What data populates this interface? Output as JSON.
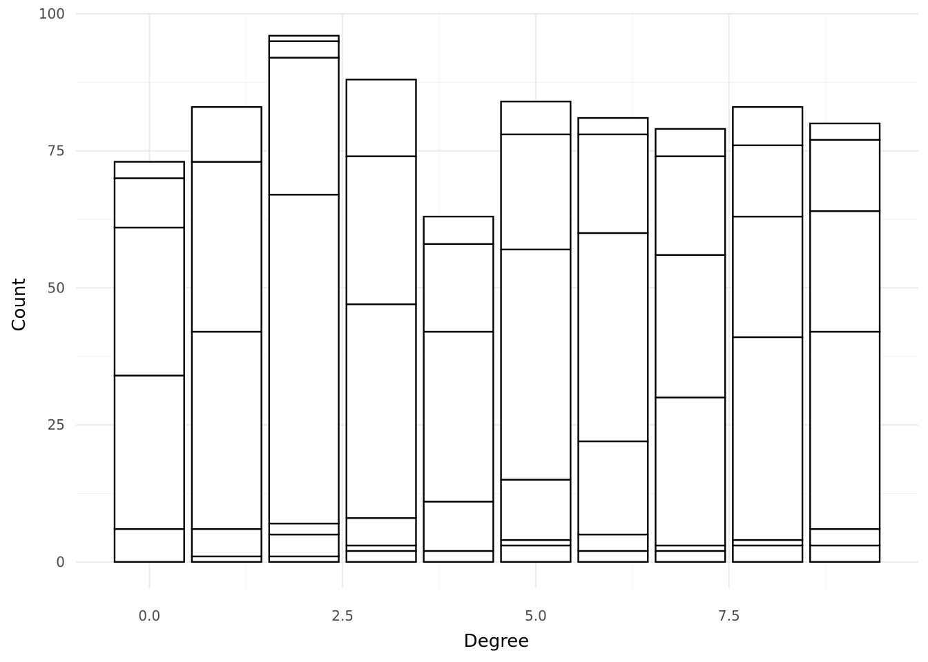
{
  "chart_data": {
    "type": "bar",
    "stacked": true,
    "xlabel": "Degree",
    "ylabel": "Count",
    "x": [
      0,
      1,
      2,
      3,
      4,
      5,
      6,
      7,
      8,
      9
    ],
    "xlim": [
      -0.95,
      9.95
    ],
    "ylim": [
      -4.8,
      100
    ],
    "x_ticks": [
      0.0,
      2.5,
      5.0,
      7.5
    ],
    "x_tick_labels": [
      "0.0",
      "2.5",
      "5.0",
      "7.5"
    ],
    "y_ticks": [
      0,
      25,
      50,
      75,
      100
    ],
    "y_tick_labels": [
      "0",
      "25",
      "50",
      "75",
      "100"
    ],
    "bar_width": 0.9,
    "fill_color": "#ffffff",
    "outline_color": "#000000",
    "grid": true,
    "legend": "none",
    "segment_boundaries": [
      [
        6,
        34,
        61,
        70,
        73
      ],
      [
        1,
        6,
        42,
        73,
        83
      ],
      [
        1,
        5,
        7,
        67,
        92,
        95,
        96
      ],
      [
        2,
        3,
        8,
        47,
        74,
        88
      ],
      [
        2,
        11,
        42,
        58,
        63
      ],
      [
        3,
        4,
        15,
        57,
        78,
        84
      ],
      [
        2,
        5,
        22,
        60,
        78,
        81
      ],
      [
        2,
        3,
        30,
        56,
        74,
        79
      ],
      [
        3,
        4,
        41,
        63,
        76,
        83
      ],
      [
        3,
        6,
        42,
        64,
        77,
        80
      ]
    ],
    "totals": [
      73,
      83,
      96,
      88,
      63,
      84,
      81,
      79,
      83,
      80
    ]
  }
}
